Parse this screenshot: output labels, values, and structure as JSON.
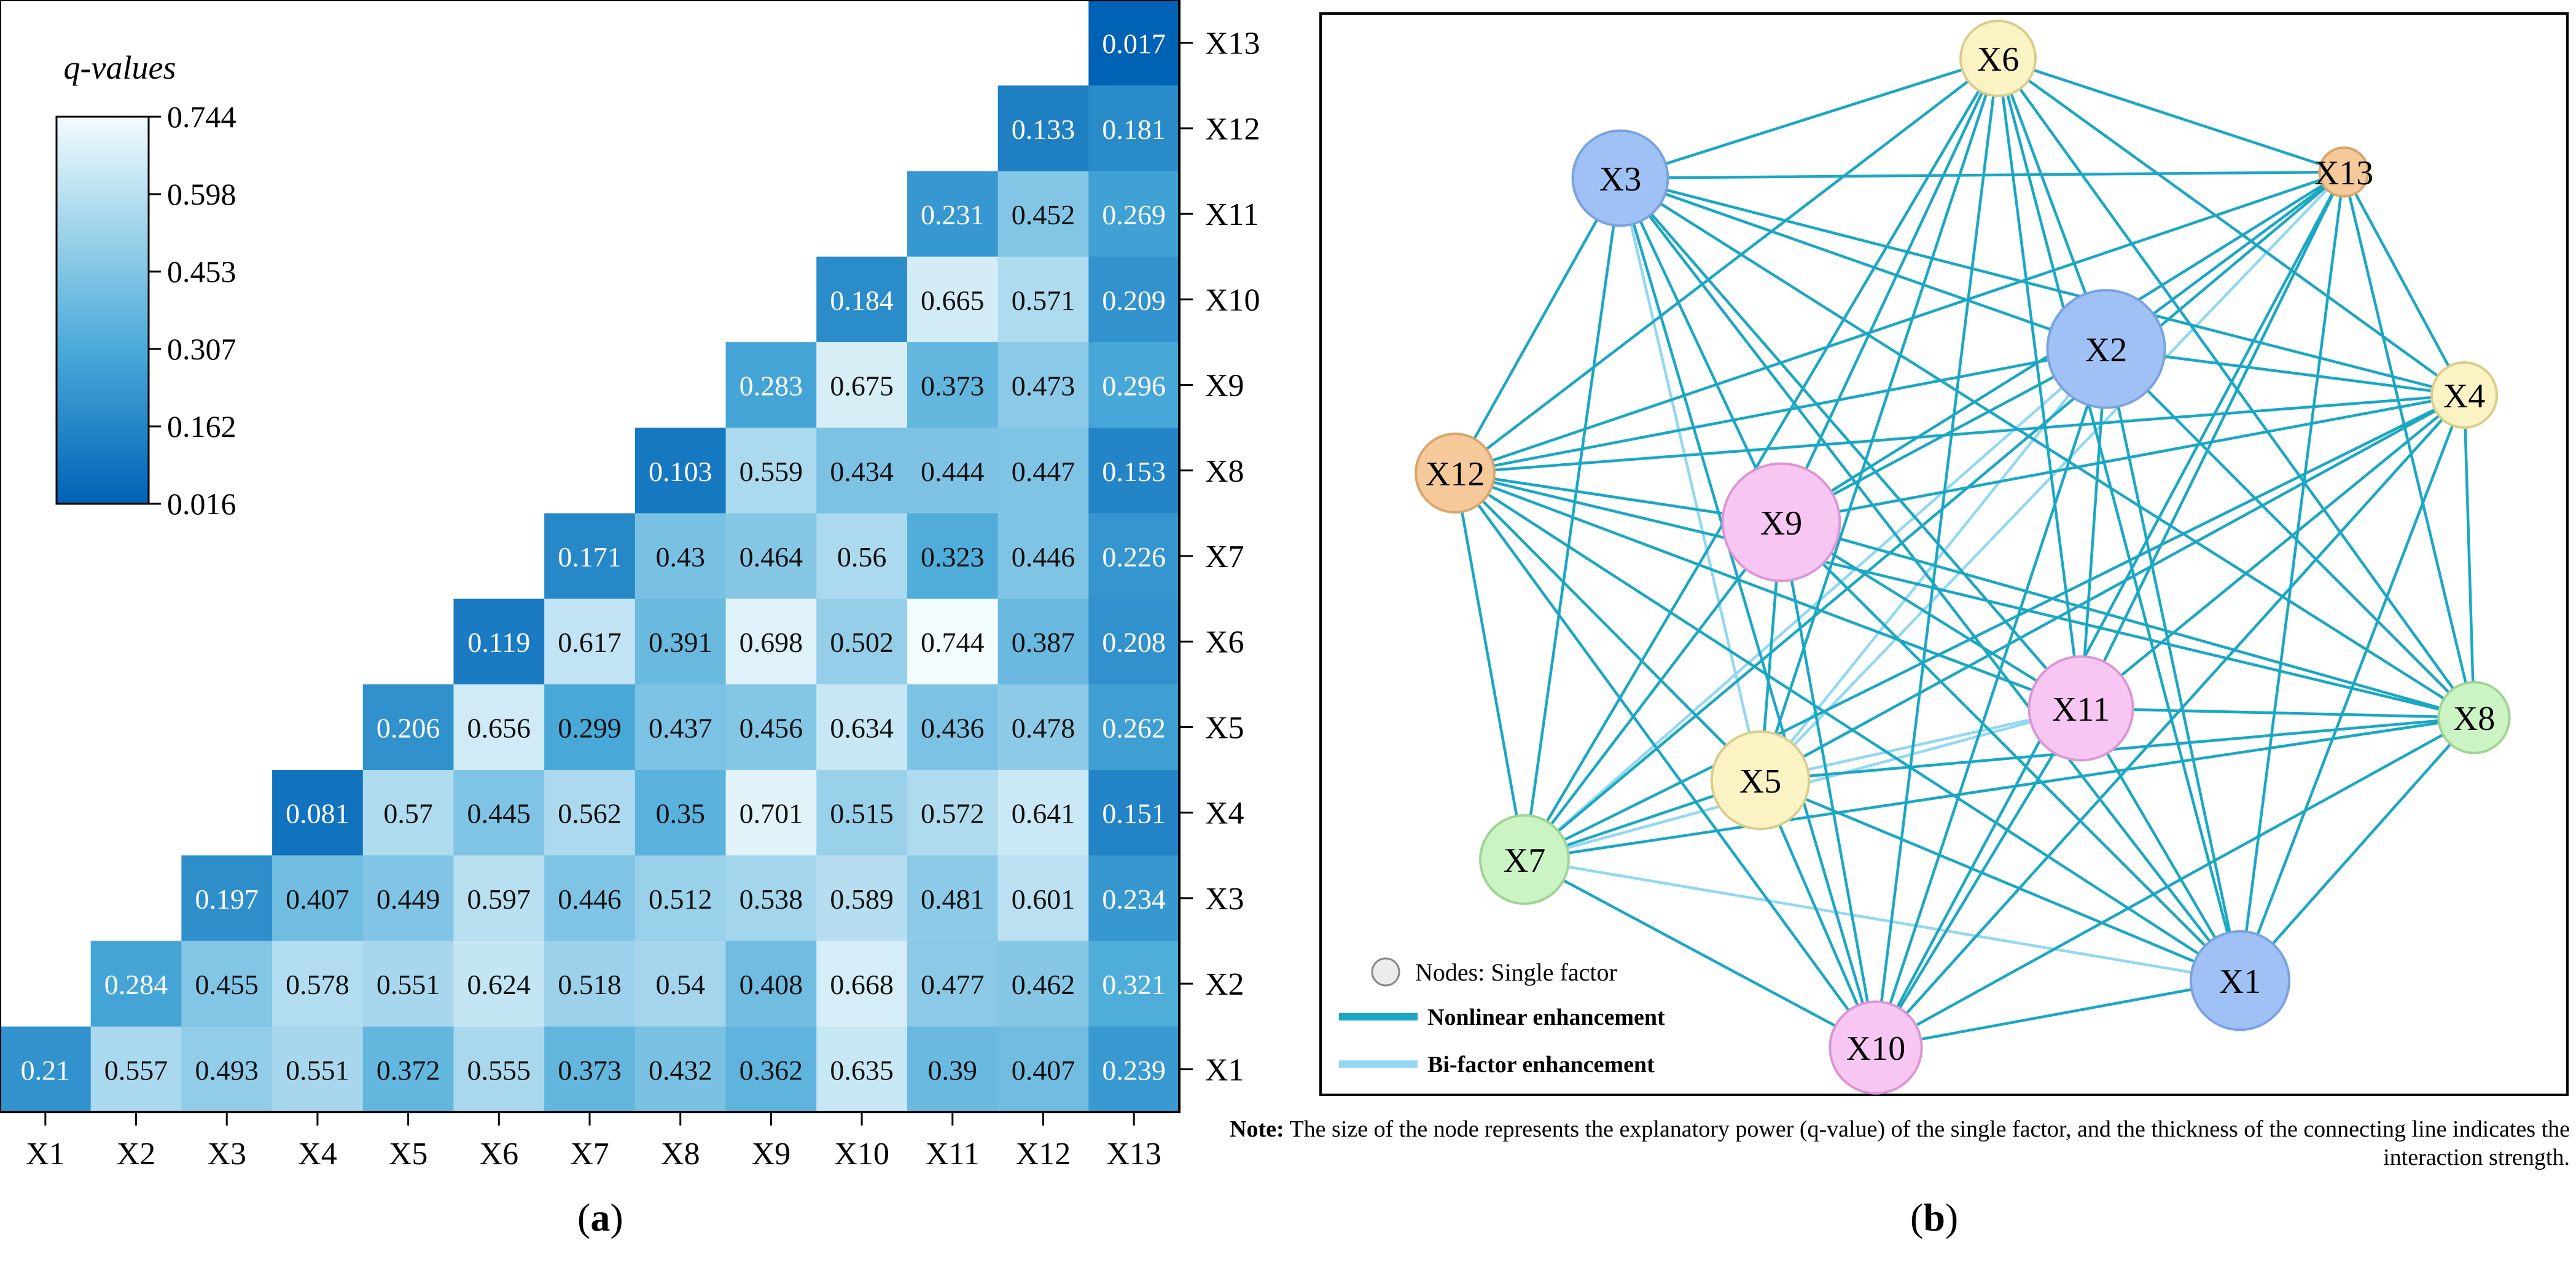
{
  "chart_data": [
    {
      "type": "heatmap",
      "panel_label": "a",
      "factors": [
        "X1",
        "X2",
        "X3",
        "X4",
        "X5",
        "X6",
        "X7",
        "X8",
        "X9",
        "X10",
        "X11",
        "X12",
        "X13"
      ],
      "rows_top_to_bottom": [
        "X13",
        "X12",
        "X11",
        "X10",
        "X9",
        "X8",
        "X7",
        "X6",
        "X5",
        "X4",
        "X3",
        "X2",
        "X1"
      ],
      "values": [
        [
          null,
          null,
          null,
          null,
          null,
          null,
          null,
          null,
          null,
          null,
          null,
          null,
          0.017
        ],
        [
          null,
          null,
          null,
          null,
          null,
          null,
          null,
          null,
          null,
          null,
          null,
          0.133,
          0.181
        ],
        [
          null,
          null,
          null,
          null,
          null,
          null,
          null,
          null,
          null,
          null,
          0.231,
          0.452,
          0.269
        ],
        [
          null,
          null,
          null,
          null,
          null,
          null,
          null,
          null,
          null,
          0.184,
          0.665,
          0.571,
          0.209
        ],
        [
          null,
          null,
          null,
          null,
          null,
          null,
          null,
          null,
          0.283,
          0.675,
          0.373,
          0.473,
          0.296
        ],
        [
          null,
          null,
          null,
          null,
          null,
          null,
          null,
          0.103,
          0.559,
          0.434,
          0.444,
          0.447,
          0.153
        ],
        [
          null,
          null,
          null,
          null,
          null,
          null,
          0.171,
          0.43,
          0.464,
          0.56,
          0.323,
          0.446,
          0.226
        ],
        [
          null,
          null,
          null,
          null,
          null,
          0.119,
          0.617,
          0.391,
          0.698,
          0.502,
          0.744,
          0.387,
          0.208
        ],
        [
          null,
          null,
          null,
          null,
          0.206,
          0.656,
          0.299,
          0.437,
          0.456,
          0.634,
          0.436,
          0.478,
          0.262
        ],
        [
          null,
          null,
          null,
          0.081,
          0.57,
          0.445,
          0.562,
          0.35,
          0.701,
          0.515,
          0.572,
          0.641,
          0.151
        ],
        [
          null,
          null,
          0.197,
          0.407,
          0.449,
          0.597,
          0.446,
          0.512,
          0.538,
          0.589,
          0.481,
          0.601,
          0.234
        ],
        [
          null,
          0.284,
          0.455,
          0.578,
          0.551,
          0.624,
          0.518,
          0.54,
          0.408,
          0.668,
          0.477,
          0.462,
          0.321
        ],
        [
          0.21,
          0.557,
          0.493,
          0.551,
          0.372,
          0.555,
          0.373,
          0.432,
          0.362,
          0.635,
          0.39,
          0.407,
          0.239
        ]
      ],
      "colorbar": {
        "title": "q-values",
        "ticks": [
          "0.744",
          "0.598",
          "0.453",
          "0.307",
          "0.162",
          "0.016"
        ],
        "min": 0.016,
        "max": 0.744,
        "color_low": "#0062b5",
        "color_mid": "#4aaad9",
        "color_high": "#f2fbfd"
      }
    },
    {
      "type": "network",
      "panel_label": "b",
      "nodes": [
        {
          "id": "X1",
          "q": 0.21,
          "color": "#9fc1f5",
          "stroke": "#7aa2df"
        },
        {
          "id": "X2",
          "q": 0.284,
          "color": "#9fc1f5",
          "stroke": "#7aa2df"
        },
        {
          "id": "X3",
          "q": 0.197,
          "color": "#9fc1f5",
          "stroke": "#7aa2df"
        },
        {
          "id": "X4",
          "q": 0.081,
          "color": "#fbf3c4",
          "stroke": "#d9cd8c"
        },
        {
          "id": "X5",
          "q": 0.206,
          "color": "#fbf3c4",
          "stroke": "#d9cd8c"
        },
        {
          "id": "X6",
          "q": 0.119,
          "color": "#fbf3c4",
          "stroke": "#d9cd8c"
        },
        {
          "id": "X7",
          "q": 0.171,
          "color": "#ccf3c4",
          "stroke": "#9fd494"
        },
        {
          "id": "X8",
          "q": 0.103,
          "color": "#ccf3c4",
          "stroke": "#9fd494"
        },
        {
          "id": "X9",
          "q": 0.283,
          "color": "#f8c6f2",
          "stroke": "#db97d3"
        },
        {
          "id": "X10",
          "q": 0.184,
          "color": "#f8c6f2",
          "stroke": "#db97d3"
        },
        {
          "id": "X11",
          "q": 0.231,
          "color": "#f8c6f2",
          "stroke": "#db97d3"
        },
        {
          "id": "X12",
          "q": 0.133,
          "color": "#f6c99a",
          "stroke": "#d9a56c"
        },
        {
          "id": "X13",
          "q": 0.017,
          "color": "#f6c99a",
          "stroke": "#d9a56c"
        }
      ],
      "edge_colors": {
        "nonlinear": "#1aa7c4",
        "bifactor": "#93d8f2"
      },
      "legend": {
        "single_factor": "Nodes: Single factor",
        "nonlinear": "Nonlinear enhancement",
        "bifactor": "Bi-factor enhancement"
      },
      "note_label": "Note:",
      "note_text": "The size of the node represents the explanatory power (q-value) of the single factor, and the thickness of the connecting line indicates the interaction strength."
    }
  ],
  "captions": {
    "a": "a",
    "b": "b"
  }
}
